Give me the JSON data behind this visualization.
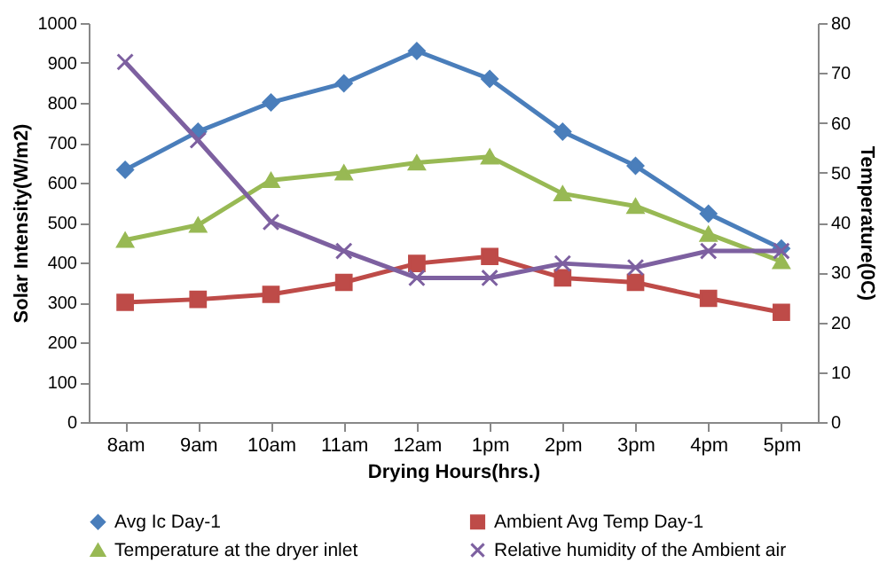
{
  "chart_data": {
    "type": "line",
    "xlabel": "Drying Hours(hrs.)",
    "ylabel": "Solar Intensity(W/m2)",
    "y2label": "Temperature(0C)",
    "categories": [
      "8am",
      "9am",
      "10am",
      "11am",
      "12am",
      "1pm",
      "2pm",
      "3pm",
      "4pm",
      "5pm"
    ],
    "ylim": [
      0,
      1000
    ],
    "yticks": [
      0,
      100,
      200,
      300,
      400,
      500,
      600,
      700,
      800,
      900,
      1000
    ],
    "y2lim": [
      0,
      80
    ],
    "y2ticks": [
      0,
      10,
      20,
      30,
      40,
      50,
      60,
      70,
      80
    ],
    "legend": "bottom",
    "grid": false,
    "line_style": "solid",
    "series": [
      {
        "name": "Avg Ic Day-1",
        "color": "#4a7ebb",
        "marker": "diamond",
        "values": [
          632,
          728,
          801,
          849,
          930,
          860,
          728,
          642,
          522,
          435
        ]
      },
      {
        "name": "Ambient Avg Temp Day-1",
        "color": "#be4b48",
        "marker": "square",
        "axis": "y2",
        "values": [
          24,
          24.6,
          25.6,
          28,
          31.8,
          33.2,
          28.9,
          28,
          24.8,
          22
        ]
      },
      {
        "name": "Temperature at the dryer inlet",
        "color": "#98b954",
        "marker": "triangle",
        "axis": "y2",
        "values": [
          36.5,
          39.5,
          48.5,
          50,
          52,
          53.2,
          45.8,
          43.3,
          37.7,
          32.2
        ]
      },
      {
        "name": "Relative humidity of the Ambient air",
        "color": "#7d60a0",
        "marker": "cross",
        "axis": "y2",
        "values": [
          72.2,
          56.5,
          40.1,
          34.3,
          28.9,
          28.9,
          31.8,
          31,
          34.3,
          34.3
        ]
      }
    ]
  }
}
